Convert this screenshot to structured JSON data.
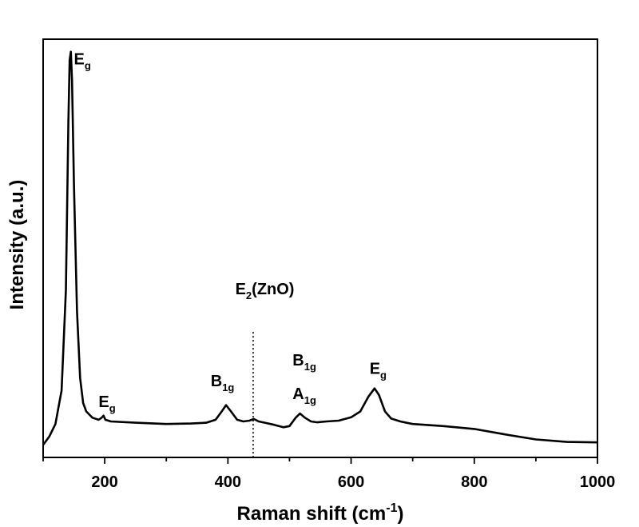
{
  "chart_data": {
    "type": "line",
    "xlabel": "Raman shift (cm",
    "xlabel_sup": "-1",
    "xlabel_end": ")",
    "ylabel": "Intensity (a.u.)",
    "xlim": [
      100,
      1000
    ],
    "ylim": [
      0,
      100
    ],
    "x_ticks": [
      200,
      400,
      600,
      800,
      1000
    ],
    "y_ticks_labeled": false,
    "grid": false,
    "series": [
      {
        "points": [
          [
            100,
            3
          ],
          [
            110,
            5
          ],
          [
            120,
            8
          ],
          [
            130,
            16
          ],
          [
            137,
            40
          ],
          [
            141,
            80
          ],
          [
            143,
            95
          ],
          [
            145,
            97
          ],
          [
            147,
            90
          ],
          [
            150,
            65
          ],
          [
            155,
            35
          ],
          [
            160,
            19
          ],
          [
            165,
            13
          ],
          [
            170,
            11
          ],
          [
            180,
            9.5
          ],
          [
            190,
            9
          ],
          [
            195,
            9.5
          ],
          [
            198,
            10
          ],
          [
            201,
            9
          ],
          [
            210,
            8.6
          ],
          [
            250,
            8.3
          ],
          [
            300,
            8.0
          ],
          [
            340,
            8.1
          ],
          [
            365,
            8.3
          ],
          [
            380,
            9.0
          ],
          [
            390,
            11
          ],
          [
            397,
            12.5
          ],
          [
            405,
            11
          ],
          [
            415,
            9
          ],
          [
            425,
            8.6
          ],
          [
            435,
            8.8
          ],
          [
            442,
            9.2
          ],
          [
            450,
            8.6
          ],
          [
            460,
            8.3
          ],
          [
            475,
            7.8
          ],
          [
            490,
            7.2
          ],
          [
            500,
            7.5
          ],
          [
            510,
            9.5
          ],
          [
            517,
            10.5
          ],
          [
            525,
            9.5
          ],
          [
            535,
            8.6
          ],
          [
            545,
            8.4
          ],
          [
            560,
            8.6
          ],
          [
            580,
            8.8
          ],
          [
            600,
            9.6
          ],
          [
            615,
            11
          ],
          [
            628,
            14.5
          ],
          [
            638,
            16.5
          ],
          [
            645,
            15
          ],
          [
            655,
            11
          ],
          [
            665,
            9.3
          ],
          [
            680,
            8.6
          ],
          [
            700,
            8.0
          ],
          [
            750,
            7.5
          ],
          [
            800,
            6.8
          ],
          [
            850,
            5.5
          ],
          [
            900,
            4.3
          ],
          [
            950,
            3.7
          ],
          [
            1000,
            3.6
          ]
        ]
      }
    ],
    "marker_line": {
      "x": 441,
      "style": "dotted"
    },
    "annotations": [
      {
        "id": "eg-144",
        "main": "E",
        "sub": "g",
        "x": 150,
        "y": 94
      },
      {
        "id": "eg-197",
        "main": "E",
        "sub": "g",
        "x": 190,
        "y": 12
      },
      {
        "id": "b1g-397",
        "main": "B",
        "sub": "1g",
        "x": 372,
        "y": 17
      },
      {
        "id": "e2-zno",
        "main": "E",
        "sub": "2",
        "tail": "(ZnO)",
        "x": 412,
        "y": 39
      },
      {
        "id": "b1g-517",
        "main": "B",
        "sub": "1g",
        "x": 505,
        "y": 22
      },
      {
        "id": "a1g-517",
        "main": "A",
        "sub": "1g",
        "x": 505,
        "y": 14
      },
      {
        "id": "eg-639",
        "main": "E",
        "sub": "g",
        "x": 630,
        "y": 20
      }
    ]
  }
}
